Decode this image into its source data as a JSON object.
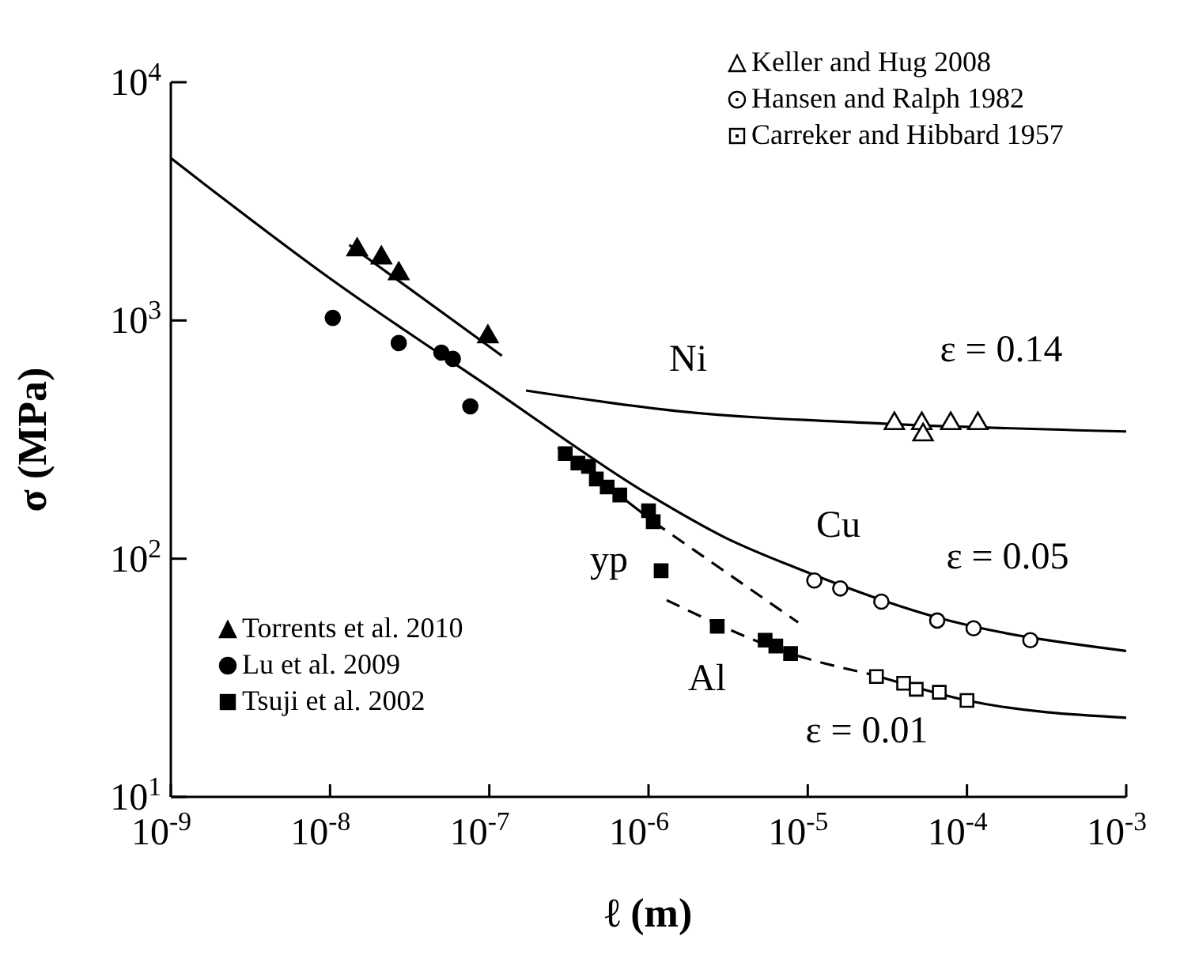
{
  "chart_data": {
    "type": "scatter",
    "xlabel": "ℓ (m)",
    "ylabel": "σ (MPa)",
    "log": "xy",
    "xlim": [
      1e-09,
      0.001
    ],
    "ylim": [
      10,
      10000
    ],
    "xticks": [
      {
        "value": 1e-09,
        "label": "10$^{-9}$"
      },
      {
        "value": 1e-08,
        "label": "10$^{-8}$"
      },
      {
        "value": 1e-07,
        "label": "10$^{-7}$"
      },
      {
        "value": 1e-06,
        "label": "10$^{-6}$"
      },
      {
        "value": 1e-05,
        "label": "10$^{-5}$"
      },
      {
        "value": 0.0001,
        "label": "10$^{-4}$"
      },
      {
        "value": 0.001,
        "label": "10$^{-3}$"
      }
    ],
    "yticks": [
      {
        "value": 10,
        "label": "10$^{1}$"
      },
      {
        "value": 100,
        "label": "10$^{2}$"
      },
      {
        "value": 1000,
        "label": "10$^{3}$"
      },
      {
        "value": 10000,
        "label": "10$^{4}$"
      }
    ],
    "grid": false,
    "legend": "top right",
    "series": [
      {
        "name": "Keller and Hug 2008",
        "color": "#000000",
        "marker": "triangle",
        "x": [
          3.5e-05,
          5.2e-05,
          5.3e-05,
          7.9e-05,
          0.000117
        ],
        "values": [
          369,
          369,
          331,
          369,
          369
        ]
      },
      {
        "name": "Hansen and Ralph 1982",
        "color": "#000000",
        "marker": "circle",
        "x": [
          1.1e-05,
          1.6e-05,
          2.9e-05,
          6.5e-05,
          0.00011,
          0.00025
        ],
        "values": [
          81,
          75,
          66,
          55,
          51,
          45.5
        ]
      },
      {
        "name": "Carreker and Hibbard 1957",
        "color": "#000000",
        "marker": "square",
        "x": [
          2.7e-05,
          4e-05,
          4.8e-05,
          6.7e-05,
          0.0001
        ],
        "values": [
          32,
          30,
          28.3,
          27.5,
          25.4
        ]
      },
      {
        "name": "Torrents et al. 2010",
        "color": "#000000",
        "marker": "triangle",
        "x": [
          1.48e-08,
          2.1e-08,
          2.7e-08,
          9.8e-08
        ],
        "values": [
          1980,
          1830,
          1570,
          855
        ]
      },
      {
        "name": "Lu et al. 2009",
        "color": "#000000",
        "marker": "circle",
        "x": [
          1.04e-08,
          2.7e-08,
          5e-08,
          5.9e-08,
          7.6e-08
        ],
        "values": [
          1025,
          804,
          733,
          690,
          436
        ]
      },
      {
        "name": "Tsuji et al. 2002",
        "color": "#000000",
        "marker": "square",
        "x": [
          3e-07,
          3.6e-07,
          4.2e-07,
          4.7e-07,
          5.5e-07,
          6.6e-07,
          1e-06,
          1.07e-06,
          1.2e-06,
          2.7e-06,
          5.4e-06,
          6.3e-06,
          7.8e-06
        ],
        "values": [
          276,
          252,
          244,
          216,
          200,
          185,
          159,
          143,
          89,
          52,
          45.5,
          43,
          40
        ]
      },
      {
        "type": "line",
        "color": "#000000",
        "line_style": "solid",
        "x": [
          1e-09,
          1e-08,
          1e-07,
          1e-06,
          3e-06,
          9e-06,
          6.3e-05,
          0.001
        ],
        "values": [
          4800,
          1500,
          525,
          186,
          123,
          90,
          57,
          41
        ]
      },
      {
        "type": "line",
        "color": "#000000",
        "line_style": "solid",
        "x": [
          1.32e-08,
          1.2e-07
        ],
        "values": [
          2075,
          711
        ]
      },
      {
        "type": "line",
        "color": "#000000",
        "line_style": "solid",
        "x": [
          1.7e-07,
          1.5e-06,
          3e-05,
          0.001
        ],
        "values": [
          508,
          417,
          369,
          342
        ]
      },
      {
        "type": "line",
        "color": "#000000",
        "line_style": "solid",
        "x": [
          2.7e-07,
          1.07e-06
        ],
        "values": [
          293,
          143
        ]
      },
      {
        "type": "line",
        "color": "#000000",
        "line_style": "dashed",
        "x": [
          1.07e-06,
          8.7e-06
        ],
        "values": [
          143,
          54
        ]
      },
      {
        "type": "line",
        "color": "#000000",
        "line_style": "dashed",
        "x": [
          1.3e-06,
          7.8e-06,
          2.6e-05
        ],
        "values": [
          67,
          40,
          32.5
        ]
      },
      {
        "type": "line",
        "color": "#000000",
        "line_style": "solid",
        "x": [
          2.6e-05,
          0.0001,
          0.001
        ],
        "values": [
          32.5,
          25.4,
          21.5
        ]
      }
    ],
    "annotations": [
      "Ni",
      "ε = 0.14",
      "Cu",
      "ε = 0.05",
      "yp",
      "Al",
      "ε = 0.01"
    ]
  }
}
